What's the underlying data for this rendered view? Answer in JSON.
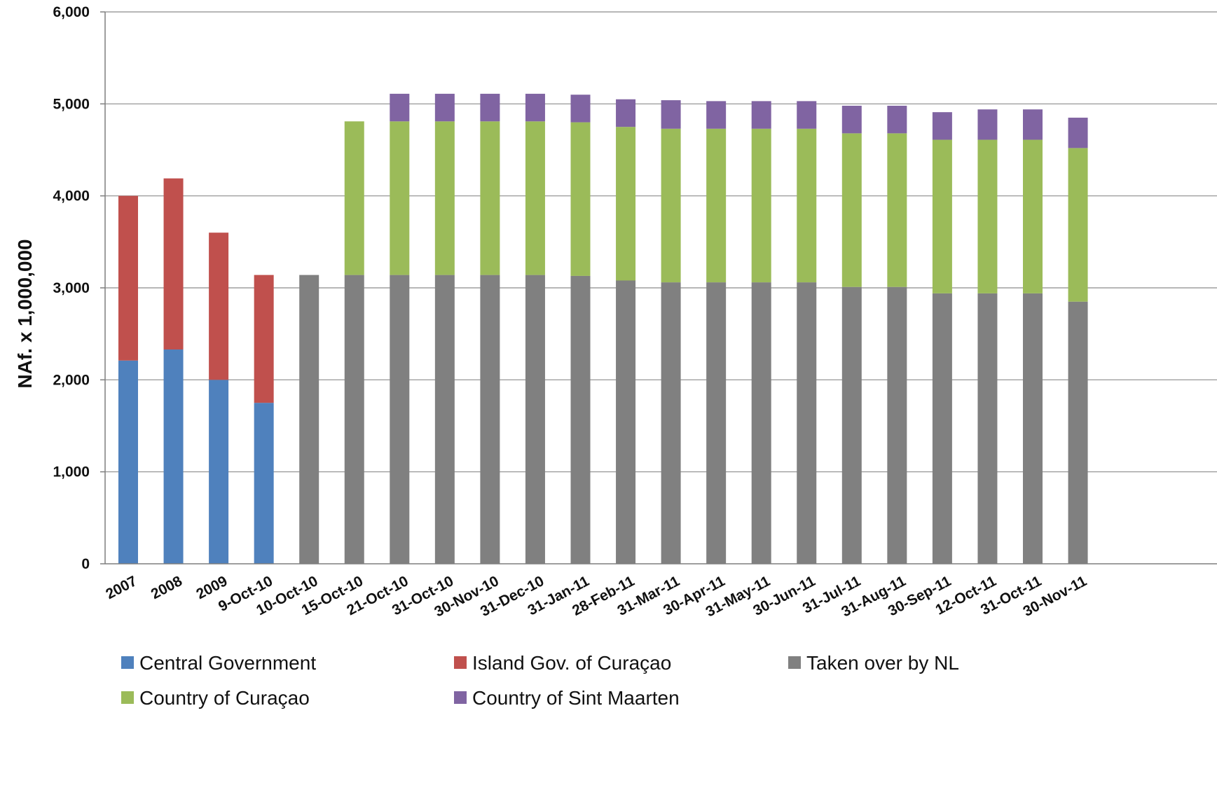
{
  "chart_data": {
    "type": "bar",
    "stacked": true,
    "title": "",
    "xlabel": "",
    "ylabel": "NAf. x 1,000,000",
    "ylim": [
      0,
      6000
    ],
    "yticks": [
      "0",
      "1,000",
      "2,000",
      "3,000",
      "4,000",
      "5,000",
      "6,000"
    ],
    "ytick_values": [
      0,
      1000,
      2000,
      3000,
      4000,
      5000,
      6000
    ],
    "grid": true,
    "legend_position": "bottom",
    "categories": [
      "2007",
      "2008",
      "2009",
      "9-Oct-10",
      "10-Oct-10",
      "15-Oct-10",
      "21-Oct-10",
      "31-Oct-10",
      "30-Nov-10",
      "31-Dec-10",
      "31-Jan-11",
      "28-Feb-11",
      "31-Mar-11",
      "30-Apr-11",
      "31-May-11",
      "30-Jun-11",
      "31-Jul-11",
      "31-Aug-11",
      "30-Sep-11",
      "12-Oct-11",
      "31-Oct-11",
      "30-Nov-11"
    ],
    "series": [
      {
        "name": "Central Government",
        "color": "#4f81bd",
        "values": [
          2210,
          2330,
          2000,
          1750,
          0,
          0,
          0,
          0,
          0,
          0,
          0,
          0,
          0,
          0,
          0,
          0,
          0,
          0,
          0,
          0,
          0,
          0
        ]
      },
      {
        "name": "Island Gov. of Curaçao",
        "color": "#c0504d",
        "values": [
          1790,
          1860,
          1600,
          1390,
          0,
          0,
          0,
          0,
          0,
          0,
          0,
          0,
          0,
          0,
          0,
          0,
          0,
          0,
          0,
          0,
          0,
          0
        ]
      },
      {
        "name": "Taken over by NL",
        "color": "#808080",
        "values": [
          0,
          0,
          0,
          0,
          3140,
          3140,
          3140,
          3140,
          3140,
          3140,
          3130,
          3080,
          3060,
          3060,
          3060,
          3060,
          3010,
          3010,
          2940,
          2940,
          2940,
          2850
        ]
      },
      {
        "name": "Country of Curaçao",
        "color": "#9bbb59",
        "values": [
          0,
          0,
          0,
          0,
          0,
          1670,
          1670,
          1670,
          1670,
          1670,
          1670,
          1670,
          1670,
          1670,
          1670,
          1670,
          1670,
          1670,
          1670,
          1670,
          1670,
          1670
        ]
      },
      {
        "name": "Country of Sint Maarten",
        "color": "#8064a2",
        "values": [
          0,
          0,
          0,
          0,
          0,
          0,
          300,
          300,
          300,
          300,
          300,
          300,
          310,
          300,
          300,
          300,
          300,
          300,
          300,
          330,
          330,
          330
        ]
      }
    ]
  }
}
